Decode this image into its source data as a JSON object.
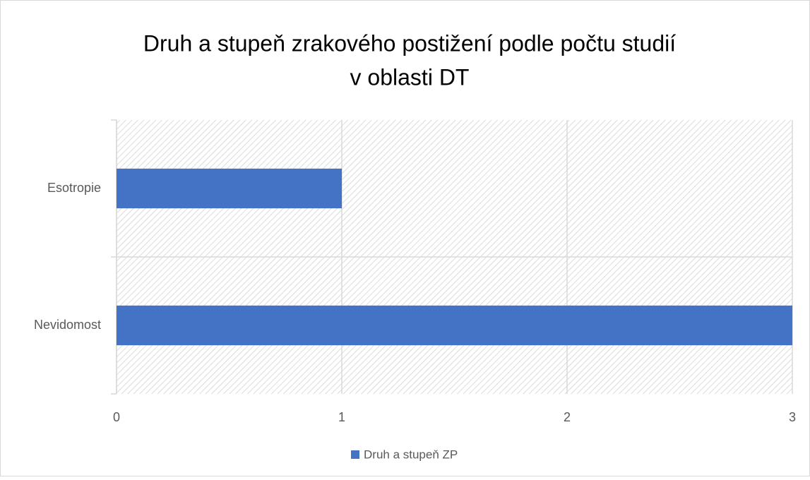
{
  "chart_data": {
    "type": "bar",
    "orientation": "horizontal",
    "title": [
      "Druh a stupeň zrakového postižení podle počtu studií",
      "v oblasti DT"
    ],
    "categories": [
      "Esotropie",
      "Nevidomost"
    ],
    "series": [
      {
        "name": "Druh a stupeň ZP",
        "color": "#4472c4",
        "values": [
          1,
          3
        ]
      }
    ],
    "xlim": [
      0,
      3
    ],
    "xticks": [
      0,
      1,
      2,
      3
    ],
    "grid": true,
    "legend": "bottom"
  }
}
